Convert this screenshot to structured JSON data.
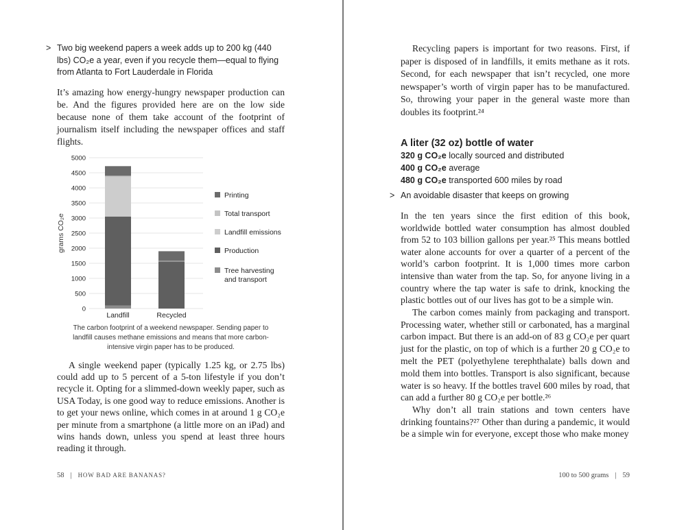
{
  "left_page": {
    "bullet": "Two big weekend papers a week adds up to 200 kg (440 lbs) CO₂e a year, even if you recycle them—equal to flying from Atlanta to Fort Lauderdale in Florida",
    "bullet_marker": ">",
    "paragraph_1": "It’s amazing how energy-hungry newspaper production can be. And the figures provided here are on the low side because none of them take account of the footprint of journalism itself including the newspaper offices and staff flights.",
    "caption": "The carbon footprint of a weekend newspaper. Sending paper to landfill causes methane emissions and means that more carbon-intensive virgin paper has to be produced.",
    "paragraph_2": "A single weekend paper (typically 1.25 kg, or 2.75 lbs) could add up to 5 percent of a 5-ton lifestyle if you don’t recycle it. Opting for a slimmed-down weekly paper, such as USA Today, is one good way to reduce emissions. Another is to get your news online, which comes in at around 1 g CO₂e per minute from a smartphone (a little more on an iPad) and wins hands down, unless you spend at least three hours reading it through.",
    "footer": {
      "page_number": "58",
      "separator": "|",
      "running_title": "How Bad Are Bananas?"
    }
  },
  "right_page": {
    "paragraph_1": "Recycling papers is important for two reasons. First, if paper is disposed of in landfills, it emits methane as it rots. Second, for each newspaper that isn’t recycled, one more newspaper’s worth of virgin paper has to be manufactured. So, throwing your paper in the general waste more than doubles its footprint.²⁴",
    "heading": "A liter (32 oz) bottle of water",
    "facts": [
      {
        "value": "320 g CO₂e",
        "label": "locally sourced and distributed"
      },
      {
        "value": "400 g CO₂e",
        "label": "average"
      },
      {
        "value": "480 g CO₂e",
        "label": "transported 600 miles by road"
      }
    ],
    "bullet": "An avoidable disaster that keeps on growing",
    "bullet_marker": ">",
    "paragraph_2": "In the ten years since the first edition of this book, worldwide bottled water consumption has almost doubled from 52 to 103 billion gallons per year.²⁵ This means bottled water alone accounts for over a quarter of a percent of the world’s carbon footprint. It is 1,000 times more carbon intensive than water from the tap. So, for anyone living in a country where the tap water is safe to drink, knocking the plastic bottles out of our lives has got to be a simple win.",
    "paragraph_3": "The carbon comes mainly from packaging and transport. Processing water, whether still or carbonated, has a marginal carbon impact. But there is an add-on of 83 g CO₂e per quart just for the plastic, on top of which is a further 20 g CO₂e to melt the PET (polyethylene terephthalate) balls down and mold them into bottles. Transport is also significant, because water is so heavy. If the bottles travel 600 miles by road, that can add a further 80 g CO₂e per bottle.²⁶",
    "paragraph_4": "Why don’t all train stations and town centers have drinking fountains?²⁷ Other than during a pandemic, it would be a simple win for everyone, except those who make money",
    "footer": {
      "running_title": "100 to 500 grams",
      "separator": "|",
      "page_number": "59"
    }
  },
  "chart_data": {
    "type": "bar",
    "stacked": true,
    "categories": [
      "Landfill",
      "Recycled"
    ],
    "ylabel": "grams CO₂e",
    "ylim": [
      0,
      5000
    ],
    "yticks": [
      "0",
      "500",
      "1000",
      "1500",
      "2000",
      "2500",
      "3000",
      "3500",
      "4000",
      "4500",
      "5000"
    ],
    "grid": true,
    "legend_position": "right",
    "series": [
      {
        "name": "Tree harvesting and transport",
        "values": [
          100,
          0
        ],
        "color": "#8c8c8c"
      },
      {
        "name": "Production",
        "values": [
          2950,
          1560
        ],
        "color": "#5f5f5f"
      },
      {
        "name": "Landfill emissions",
        "values": [
          1300,
          0
        ],
        "color": "#cdcdcd"
      },
      {
        "name": "Total transport",
        "values": [
          50,
          20
        ],
        "color": "#c4c4c4"
      },
      {
        "name": "Printing",
        "values": [
          320,
          320
        ],
        "color": "#6b6b6b"
      }
    ],
    "legend_order": [
      "Printing",
      "Total transport",
      "Landfill emissions",
      "Production",
      "Tree harvesting and transport"
    ]
  }
}
